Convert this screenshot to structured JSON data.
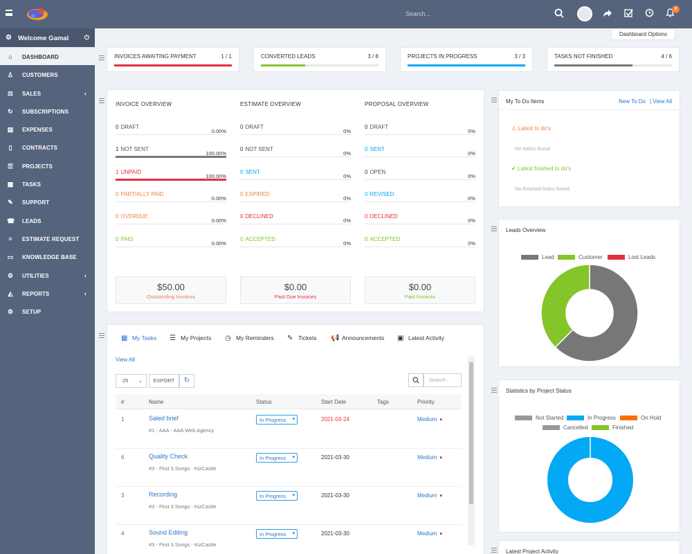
{
  "topbar": {
    "search_placeholder": "Search...",
    "notifications_count": "6"
  },
  "sidebar": {
    "welcome": "Welcome Gamal",
    "items": [
      {
        "label": "DASHBOARD",
        "icon": "home-icon"
      },
      {
        "label": "CUSTOMERS",
        "icon": "user-icon"
      },
      {
        "label": "SALES",
        "icon": "balance-scale-icon"
      },
      {
        "label": "SUBSCRIPTIONS",
        "icon": "refresh-icon"
      },
      {
        "label": "EXPENSES",
        "icon": "file-text-icon"
      },
      {
        "label": "CONTRACTS",
        "icon": "file-icon"
      },
      {
        "label": "PROJECTS",
        "icon": "bars-icon"
      },
      {
        "label": "TASKS",
        "icon": "tasks-icon"
      },
      {
        "label": "SUPPORT",
        "icon": "ticket-icon"
      },
      {
        "label": "LEADS",
        "icon": "tty-icon"
      },
      {
        "label": "ESTIMATE REQUEST",
        "icon": "list-icon"
      },
      {
        "label": "KNOWLEDGE BASE",
        "icon": "folder-open-icon"
      },
      {
        "label": "UTILITIES",
        "icon": "cogs-icon"
      },
      {
        "label": "REPORTS",
        "icon": "area-chart-icon"
      },
      {
        "label": "SETUP",
        "icon": "cog-icon"
      }
    ]
  },
  "dashboard_options": "Dashboard Options",
  "stats": [
    {
      "label": "INVOICES AWAITING PAYMENT",
      "value": "1 / 1",
      "progress": 1.0,
      "color": "#e52f3e"
    },
    {
      "label": "CONVERTED LEADS",
      "value": "3 / 8",
      "progress": 0.375,
      "color": "#84c529"
    },
    {
      "label": "PROJECTS IN PROGRESS",
      "value": "3 / 3",
      "progress": 1.0,
      "color": "#03a9f4"
    },
    {
      "label": "TASKS NOT FINISHED",
      "value": "4 / 6",
      "progress": 0.6667,
      "color": "#777777"
    }
  ],
  "invoice_overview": {
    "title": "INVOICE OVERVIEW",
    "rows": [
      {
        "count": "0",
        "label": "DRAFT",
        "pct": "0.00%",
        "color": "#777777",
        "fill": 0
      },
      {
        "count": "1",
        "label": "NOT SENT",
        "pct": "100.00%",
        "color": "#777777",
        "fill": 1
      },
      {
        "count": "1",
        "label": "UNPAID",
        "pct": "100.00%",
        "color": "#e52f3e",
        "fill": 1
      },
      {
        "count": "0",
        "label": "PARTIALLY PAID",
        "pct": "0.00%",
        "color": "#f0803c",
        "fill": 0
      },
      {
        "count": "0",
        "label": "OVERDUE",
        "pct": "0.00%",
        "color": "#f0803c",
        "fill": 0
      },
      {
        "count": "0",
        "label": "PAID",
        "pct": "0.00%",
        "color": "#84c529",
        "fill": 0
      }
    ]
  },
  "estimate_overview": {
    "title": "ESTIMATE OVERVIEW",
    "rows": [
      {
        "count": "0",
        "label": "DRAFT",
        "pct": "0%",
        "color": "#777777"
      },
      {
        "count": "0",
        "label": "NOT SENT",
        "pct": "0%",
        "color": "#777777"
      },
      {
        "count": "0",
        "label": "SENT",
        "pct": "0%",
        "color": "#03a9f4"
      },
      {
        "count": "0",
        "label": "EXPIRED",
        "pct": "0%",
        "color": "#f0803c"
      },
      {
        "count": "0",
        "label": "DECLINED",
        "pct": "0%",
        "color": "#e52f3e"
      },
      {
        "count": "0",
        "label": "ACCEPTED",
        "pct": "0%",
        "color": "#84c529"
      }
    ]
  },
  "proposal_overview": {
    "title": "PROPOSAL OVERVIEW",
    "rows": [
      {
        "count": "0",
        "label": "DRAFT",
        "pct": "0%",
        "color": "#777777"
      },
      {
        "count": "0",
        "label": "SENT",
        "pct": "0%",
        "color": "#03a9f4"
      },
      {
        "count": "0",
        "label": "OPEN",
        "pct": "0%",
        "color": "#777777"
      },
      {
        "count": "0",
        "label": "REVISED",
        "pct": "0%",
        "color": "#03a9f4"
      },
      {
        "count": "0",
        "label": "DECLINED",
        "pct": "0%",
        "color": "#e52f3e"
      },
      {
        "count": "0",
        "label": "ACCEPTED",
        "pct": "0%",
        "color": "#84c529"
      }
    ]
  },
  "money": [
    {
      "amount": "$50.00",
      "label": "Outstanding Invoices",
      "color": "#f0803c"
    },
    {
      "amount": "$0.00",
      "label": "Past Due Invoices",
      "color": "#e52f3e"
    },
    {
      "amount": "$0.00",
      "label": "Paid Invoices",
      "color": "#84c529"
    }
  ],
  "tasks_panel": {
    "tabs": [
      {
        "label": "My Tasks",
        "icon": "tasks-icon"
      },
      {
        "label": "My Projects",
        "icon": "bars-icon"
      },
      {
        "label": "My Reminders",
        "icon": "clock-icon"
      },
      {
        "label": "Tickets",
        "icon": "ticket-icon"
      },
      {
        "label": "Announcements",
        "icon": "bullhorn-icon"
      },
      {
        "label": "Latest Activity",
        "icon": "window-icon"
      }
    ],
    "view_all": "View All",
    "page_size": "25",
    "export": "EXPORT",
    "search_placeholder": "Search...",
    "columns": [
      "#",
      "Name",
      "Status",
      "Start Date",
      "Tags",
      "Priority"
    ],
    "rows": [
      {
        "num": "1",
        "name": "Saled brief",
        "meta": "#1 - AAA - AAA Web Agency",
        "status": "In Progress",
        "date": "2021-03-24",
        "date_color": "#e52f3e",
        "priority": "Medium"
      },
      {
        "num": "6",
        "name": "Quality Check",
        "meta": "#3 - First 3 Songs - KizCastle",
        "status": "In Progress",
        "date": "2021-03-30",
        "date_color": "#333333",
        "priority": "Medium"
      },
      {
        "num": "3",
        "name": "Recording",
        "meta": "#3 - First 3 Songs - KizCastle",
        "status": "In Progress",
        "date": "2021-03-30",
        "date_color": "#333333",
        "priority": "Medium"
      },
      {
        "num": "4",
        "name": "Sound Editing",
        "meta": "#3 - First 3 Songs - KizCastle",
        "status": "In Progress",
        "date": "2021-03-30",
        "date_color": "#333333",
        "priority": "Medium"
      }
    ]
  },
  "todo": {
    "title": "My To Do Items",
    "new_link": "New To Do",
    "view_all": "| View All",
    "latest": "Latest to do's",
    "no_todos": "No todos found",
    "finished": "Latest finished to do's",
    "no_finished": "No finished todos found"
  },
  "leads_overview": {
    "title": "Leads Overview",
    "legend": [
      {
        "name": "Lead",
        "color": "#777777"
      },
      {
        "name": "Customer",
        "color": "#84c529"
      },
      {
        "name": "Lost Leads",
        "color": "#e52f3e"
      }
    ]
  },
  "project_stats": {
    "title": "Statistics by Project Status",
    "legend": [
      {
        "name": "Not Started",
        "color": "#989898"
      },
      {
        "name": "In Progress",
        "color": "#03a9f4"
      },
      {
        "name": "On Hold",
        "color": "#ff6f00"
      },
      {
        "name": "Cancelled",
        "color": "#989898"
      },
      {
        "name": "Finished",
        "color": "#84c529"
      }
    ]
  },
  "latest_activity": {
    "title": "Latest Project Activity"
  },
  "chart_data": [
    {
      "type": "pie",
      "title": "Leads Overview",
      "categories": [
        "Lead",
        "Customer",
        "Lost Leads"
      ],
      "values": [
        5,
        3,
        0
      ]
    },
    {
      "type": "pie",
      "title": "Statistics by Project Status",
      "categories": [
        "Not Started",
        "In Progress",
        "On Hold",
        "Cancelled",
        "Finished"
      ],
      "values": [
        0,
        3,
        0,
        0,
        0
      ]
    }
  ]
}
